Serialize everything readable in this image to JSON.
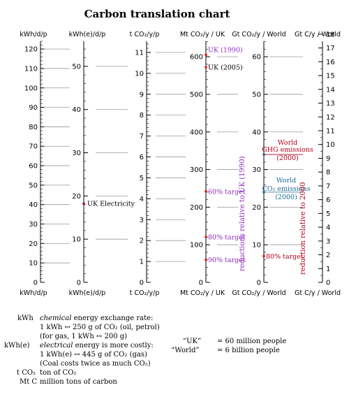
{
  "chart_data": {
    "type": "table",
    "title": "Carbon translation chart",
    "ymin": 0,
    "ymax": 124,
    "scales": [
      {
        "header": "kWh/d/p",
        "ticks": [
          0,
          10,
          20,
          30,
          40,
          50,
          60,
          70,
          80,
          90,
          100,
          110,
          120
        ],
        "minor_step": 2,
        "factor": 1
      },
      {
        "header": "kWh(e)/d/p",
        "ticks": [
          0,
          10,
          20,
          30,
          40,
          50
        ],
        "minor_step": 2,
        "factor": 2.222
      },
      {
        "header": "t CO₂/y/p",
        "ticks": [
          0,
          1,
          2,
          3,
          4,
          5,
          6,
          7,
          8,
          9,
          10,
          11
        ],
        "minor_step": 0.2,
        "factor": 10.75
      },
      {
        "header": "Mt CO₂/y / UK",
        "ticks": [
          0,
          100,
          200,
          300,
          400,
          500,
          600
        ],
        "minor_step": 20,
        "factor": 0.1934
      },
      {
        "header": "Gt CO₂/y / World",
        "ticks": [
          0,
          10,
          20,
          30,
          40,
          50,
          60
        ],
        "minor_step": 2,
        "factor": 1.934
      },
      {
        "header": "Gt C/y / World",
        "ticks": [
          0,
          1,
          2,
          3,
          4,
          5,
          6,
          7,
          8,
          9,
          10,
          11,
          12,
          13,
          14,
          15,
          16,
          17,
          18
        ],
        "minor_step": 0.5,
        "factor": 7.09
      }
    ],
    "annotations": [
      {
        "label": "UK Electricity",
        "value_kwh": 40.5,
        "color": "#000000",
        "axis": 1
      },
      {
        "label": "UK (1990)",
        "value_mt_uk": 605,
        "color": "#8f2bc0",
        "axis": 3
      },
      {
        "label": "UK (2005)",
        "value_mt_uk": 572,
        "color": "#000000",
        "axis": 3
      },
      {
        "label": "60% target",
        "value_mt_uk": 242,
        "color": "#8f2bc0",
        "axis": 3
      },
      {
        "label": "80% target",
        "value_mt_uk": 121,
        "color": "#8f2bc0",
        "axis": 3
      },
      {
        "label": "90% target",
        "value_mt_uk": 60,
        "color": "#8f2bc0",
        "axis": 3
      },
      {
        "label": "World GHG emissions (2000)",
        "value_gt_world": 34,
        "color": "#b3001b",
        "axis": 4
      },
      {
        "label": "World CO₂ emissions (2000)",
        "value_gt_world": 24,
        "color": "#1c6b8f",
        "axis": 4
      },
      {
        "label": "80% target",
        "value_gt_world": 7,
        "color": "#b3001b",
        "axis": 4
      }
    ],
    "vertical_labels": [
      {
        "text": "reductions relative to UK (1990)",
        "color": "#8f2bc0"
      },
      {
        "text": "reduction relative to 2000",
        "color": "#b3001b"
      }
    ]
  },
  "footnotes": {
    "kwh_term": "kWh",
    "kwh_title": "chemical",
    "kwh_desc": " energy exchange rate:",
    "kwh_line2": "1 kWh ↔ 250 g of CO₂ (oil, petrol)",
    "kwh_line3": "(for gas, 1 kWh ↔ 200 g)",
    "kwhe_term": "kWh(e)",
    "kwhe_title": "electrical",
    "kwhe_desc": " energy is more costly:",
    "kwhe_line2": "1 kWh(e) ↔ 445 g of CO₂ (gas)",
    "kwhe_line3": "(Coal costs twice as much CO₂)",
    "tco2_term": "t CO₂",
    "tco2_desc": "ton of CO₂",
    "mtc_term": "Mt C",
    "mtc_desc": "million tons of carbon",
    "uk_term": "“UK”",
    "uk_desc": "= 60 million people",
    "world_term": "“World”",
    "world_desc": "= 6 billion people"
  },
  "colors": {
    "purple": "#8f2bc0",
    "red": "#b3001b",
    "blue": "#1c6b8f",
    "rule": "#9a9a9a"
  }
}
